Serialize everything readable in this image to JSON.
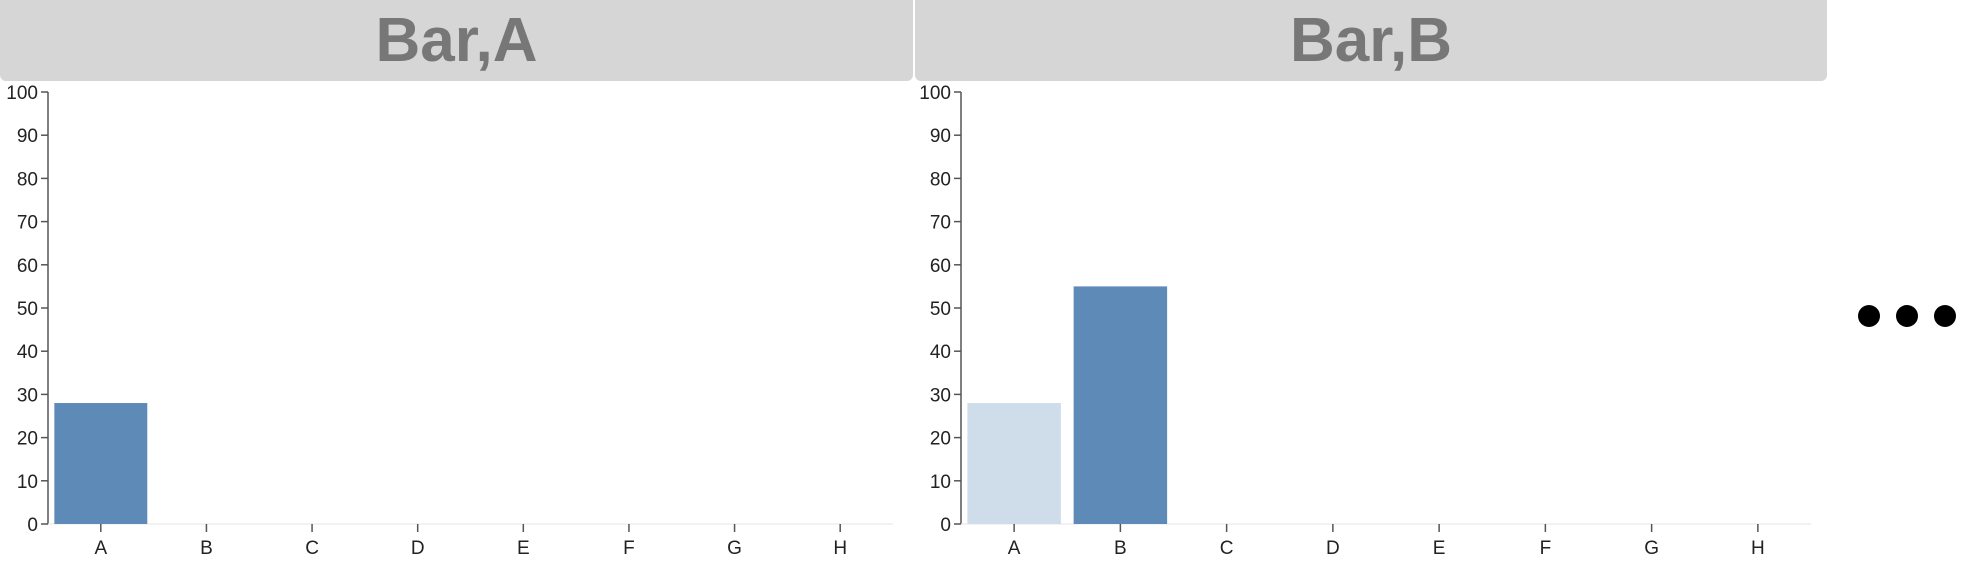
{
  "panels": [
    {
      "title": "Bar,A"
    },
    {
      "title": "Bar,B"
    }
  ],
  "more_indicator": "ellipsis-dots",
  "colors": {
    "highlight": "#5e8ab8",
    "faded": "#cfdcea",
    "title_bg": "#d6d6d6",
    "title_text": "#777777"
  },
  "chart_data": [
    {
      "type": "bar",
      "title": "Bar,A",
      "categories": [
        "A",
        "B",
        "C",
        "D",
        "E",
        "F",
        "G",
        "H"
      ],
      "values": [
        28,
        0,
        0,
        0,
        0,
        0,
        0,
        0
      ],
      "highlight": "A",
      "ylim": [
        0,
        100
      ],
      "yticks": [
        0,
        10,
        20,
        30,
        40,
        50,
        60,
        70,
        80,
        90,
        100
      ],
      "grid": false,
      "xlabel": "",
      "ylabel": ""
    },
    {
      "type": "bar",
      "title": "Bar,B",
      "categories": [
        "A",
        "B",
        "C",
        "D",
        "E",
        "F",
        "G",
        "H"
      ],
      "values": [
        28,
        55,
        0,
        0,
        0,
        0,
        0,
        0
      ],
      "highlight": "B",
      "ylim": [
        0,
        100
      ],
      "yticks": [
        0,
        10,
        20,
        30,
        40,
        50,
        60,
        70,
        80,
        90,
        100
      ],
      "grid": false,
      "xlabel": "",
      "ylabel": ""
    }
  ]
}
